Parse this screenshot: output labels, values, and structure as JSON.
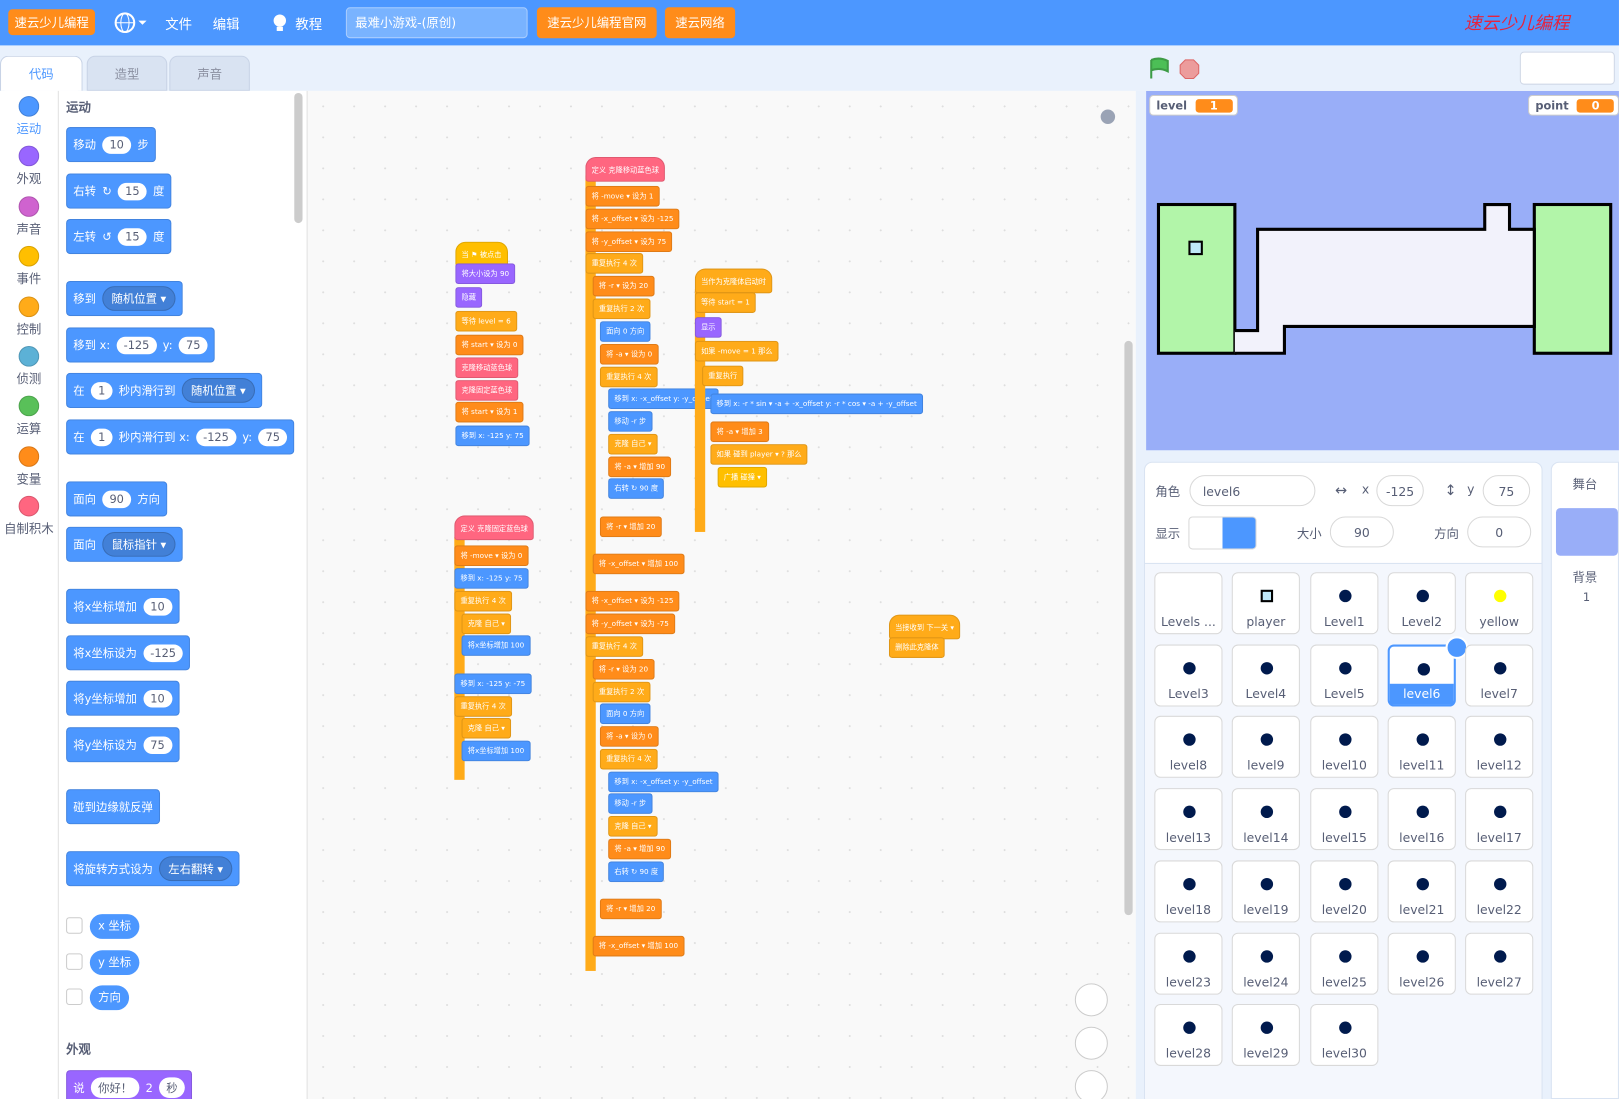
{
  "menubar": {
    "logo": "速云少儿编程",
    "file": "文件",
    "edit": "编辑",
    "tutorial": "教程",
    "project_title": "最难小游戏-(原创)",
    "links": [
      "速云少儿编程官网",
      "速云网络"
    ],
    "brand": "速云少儿编程"
  },
  "tabs": [
    "代码",
    "造型",
    "声音"
  ],
  "categories": [
    "运动",
    "外观",
    "声音",
    "事件",
    "控制",
    "侦测",
    "运算",
    "变量",
    "自制积木"
  ],
  "palette": {
    "sections": [
      "运动",
      "外观"
    ],
    "blocks": [
      [
        "移动",
        "10",
        "步"
      ],
      [
        "右转",
        "↻",
        "15",
        "度"
      ],
      [
        "左转",
        "↺",
        "15",
        "度"
      ],
      [
        "移到",
        "随机位置 ▾"
      ],
      [
        "移到 x:",
        "-125",
        "y:",
        "75"
      ],
      [
        "在",
        "1",
        "秒内滑行到",
        "随机位置 ▾"
      ],
      [
        "在",
        "1",
        "秒内滑行到 x:",
        "-125",
        "y:",
        "75"
      ],
      [
        "面向",
        "90",
        "方向"
      ],
      [
        "面向",
        "鼠标指针 ▾"
      ],
      [
        "将x坐标增加",
        "10"
      ],
      [
        "将x坐标设为",
        "-125"
      ],
      [
        "将y坐标增加",
        "10"
      ],
      [
        "将y坐标设为",
        "75"
      ],
      [
        "碰到边缘就反弹"
      ],
      [
        "将旋转方式设为",
        "左右翻转 ▾"
      ]
    ],
    "reporters": [
      "x 坐标",
      "y 坐标",
      "方向"
    ],
    "looks_blocks": [
      [
        "说",
        "你好！",
        "2",
        "秒"
      ]
    ]
  },
  "scripts": [
    {
      "blocks": [
        "当 ⚑ 被点击",
        "将大小设为 90",
        "隐藏",
        "等待 level = 6",
        "将 start ▾ 设为 0",
        "克隆移动蓝色球",
        "克隆固定蓝色球",
        "将 start ▾ 设为 1",
        "移到 x: -125 y: 75"
      ]
    },
    {
      "blocks": [
        "定义 克隆固定蓝色球",
        "将 -move ▾ 设为 0",
        "移到 x: -125 y: 75",
        "重复执行 4 次",
        "克隆 自己 ▾",
        "将x坐标增加 100",
        "移到 x: -125 y: -75",
        "重复执行 4 次",
        "克隆 自己 ▾",
        "将x坐标增加 100"
      ]
    },
    {
      "blocks": [
        "定义 克隆移动蓝色球",
        "将 -move ▾ 设为 1",
        "将 -x_offset ▾ 设为 -125",
        "将 -y_offset ▾ 设为 75",
        "重复执行 4 次",
        "将 -r ▾ 设为 20",
        "重复执行 2 次",
        "面向 0 方向",
        "将 -a ▾ 设为 0",
        "重复执行 4 次",
        "移到 x: -x_offset y: -y_offset",
        "移动 -r 步",
        "克隆 自己 ▾",
        "将 -a ▾ 增加 90",
        "右转 ↻ 90 度",
        "将 -r ▾ 增加 20",
        "将 -x_offset ▾ 增加 100",
        "将 -x_offset ▾ 设为 -125",
        "将 -y_offset ▾ 设为 -75",
        "重复执行 4 次",
        "将 -r ▾ 设为 20",
        "重复执行 2 次",
        "面向 0 方向",
        "将 -a ▾ 设为 0",
        "重复执行 4 次",
        "移到 x: -x_offset y: -y_offset",
        "移动 -r 步",
        "克隆 自己 ▾",
        "将 -a ▾ 增加 90",
        "右转 ↻ 90 度",
        "将 -r ▾ 增加 20",
        "将 -x_offset ▾ 增加 100"
      ]
    },
    {
      "blocks": [
        "当作为克隆体启动时",
        "等待 start = 1",
        "显示",
        "如果 -move = 1 那么",
        "重复执行",
        "移到 x: -r * sin ▾ -a + -x_offset   y: -r * cos ▾ -a + -y_offset",
        "将 -a ▾ 增加 3",
        "如果 碰到 player ▾ ? 那么",
        "广播 碰撞 ▾"
      ]
    },
    {
      "blocks": [
        "当接收到 下一关 ▾",
        "删除此克隆体"
      ]
    }
  ],
  "stage": {
    "monitors": [
      {
        "label": "level",
        "value": "1"
      },
      {
        "label": "point",
        "value": "0"
      }
    ]
  },
  "sprite_info": {
    "sprite_label": "角色",
    "sprite_name": "level6",
    "x_label": "x",
    "x": "-125",
    "y_label": "y",
    "y": "75",
    "show_label": "显示",
    "size_label": "大小",
    "size": "90",
    "direction_label": "方向",
    "direction": "0"
  },
  "stage_panel": {
    "title": "舞台",
    "backdrops_label": "背景",
    "backdrops": "1"
  },
  "sprites": [
    "Levels ...",
    "player",
    "Level1",
    "Level2",
    "yellow",
    "Level3",
    "Level4",
    "Level5",
    "level6",
    "level7",
    "level8",
    "level9",
    "level10",
    "level11",
    "level12",
    "level13",
    "level14",
    "level15",
    "level16",
    "level17",
    "level18",
    "level19",
    "level20",
    "level21",
    "level22",
    "level23",
    "level24",
    "level25",
    "level26",
    "level27",
    "level28",
    "level29",
    "level30"
  ]
}
